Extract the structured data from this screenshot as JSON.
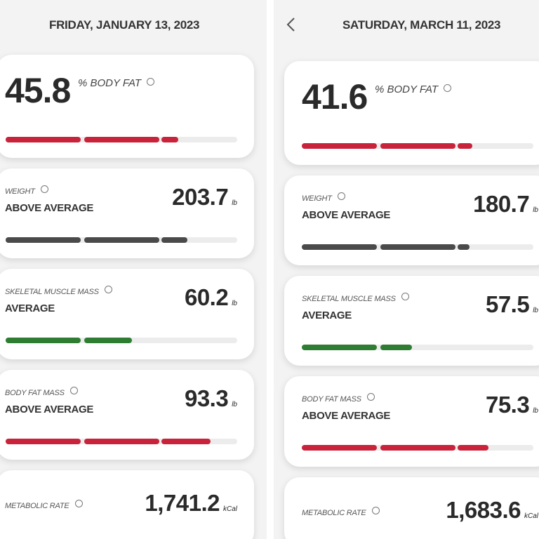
{
  "screens": [
    {
      "date": "FRIDAY, JANUARY 13, 2023",
      "body_fat": {
        "value": "45.8",
        "label": "% BODY FAT"
      },
      "metrics": [
        {
          "label": "WEIGHT",
          "status": "ABOVE AVERAGE",
          "value": "203.7",
          "unit": "lb"
        },
        {
          "label": "SKELETAL MUSCLE MASS",
          "status": "AVERAGE",
          "value": "60.2",
          "unit": "lb"
        },
        {
          "label": "BODY FAT MASS",
          "status": "ABOVE AVERAGE",
          "value": "93.3",
          "unit": "lb"
        },
        {
          "label": "METABOLIC RATE",
          "value": "1,741.2",
          "unit": "kCal"
        }
      ]
    },
    {
      "date": "SATURDAY, MARCH 11, 2023",
      "body_fat": {
        "value": "41.6",
        "label": "% BODY FAT"
      },
      "metrics": [
        {
          "label": "WEIGHT",
          "status": "ABOVE AVERAGE",
          "value": "180.7",
          "unit": "lb"
        },
        {
          "label": "SKELETAL MUSCLE MASS",
          "status": "AVERAGE",
          "value": "57.5",
          "unit": "lb"
        },
        {
          "label": "BODY FAT MASS",
          "status": "ABOVE AVERAGE",
          "value": "75.3",
          "unit": "lb"
        },
        {
          "label": "METABOLIC RATE",
          "value": "1,683.6",
          "unit": "kCal"
        }
      ]
    }
  ]
}
